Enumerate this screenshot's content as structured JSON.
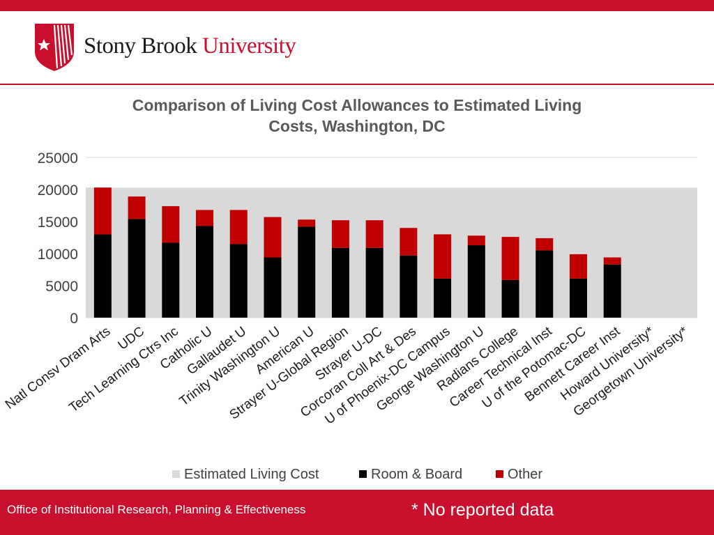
{
  "header": {
    "logo_word_1": "Stony Brook",
    "logo_word_2": "University"
  },
  "footer": {
    "office": "Office of Institutional Research, Planning & Effectiveness",
    "note": "* No reported data"
  },
  "colors": {
    "brand_red": "#c8102e",
    "estimated": "#d9d9d9",
    "room_board": "#000000",
    "other": "#c00000"
  },
  "chart_data": {
    "type": "bar",
    "stacked": true,
    "title_lines": [
      "Comparison of Living Cost Allowances to Estimated Living",
      "Costs, Washington, DC"
    ],
    "ylim": [
      0,
      25000
    ],
    "yticks": [
      "0",
      "5000",
      "10000",
      "15000",
      "20000",
      "25000"
    ],
    "categories": [
      "Natl Consv Dram Arts",
      "UDC",
      "Tech Learning Ctrs Inc",
      "Catholic U",
      "Gallaudet U",
      "Trinity Washington U",
      "American U",
      "Strayer U-Global Region",
      "Strayer U-DC",
      "Corcoran Coll Art & Des",
      "U of Phoenix-DC Campus",
      "George Washington U",
      "Radians College",
      "Career Technical Inst",
      "U of the Potomac-DC",
      "Bennett Career Inst",
      "Howard University*",
      "Georgetown University*"
    ],
    "estimated_living_cost": 20300,
    "series": [
      {
        "name": "Room & Board",
        "values": [
          13000,
          15400,
          11700,
          14300,
          11500,
          9400,
          14200,
          10900,
          10900,
          9700,
          6100,
          11300,
          5900,
          10500,
          6100,
          8300,
          0,
          0
        ]
      },
      {
        "name": "Other",
        "values": [
          7300,
          3500,
          5700,
          2500,
          5300,
          6300,
          1100,
          4300,
          4300,
          4300,
          6900,
          1500,
          6700,
          1900,
          3800,
          1100,
          0,
          0
        ]
      }
    ],
    "legend": [
      "Estimated Living Cost",
      "Room & Board",
      "Other"
    ],
    "legend_position": "bottom"
  }
}
